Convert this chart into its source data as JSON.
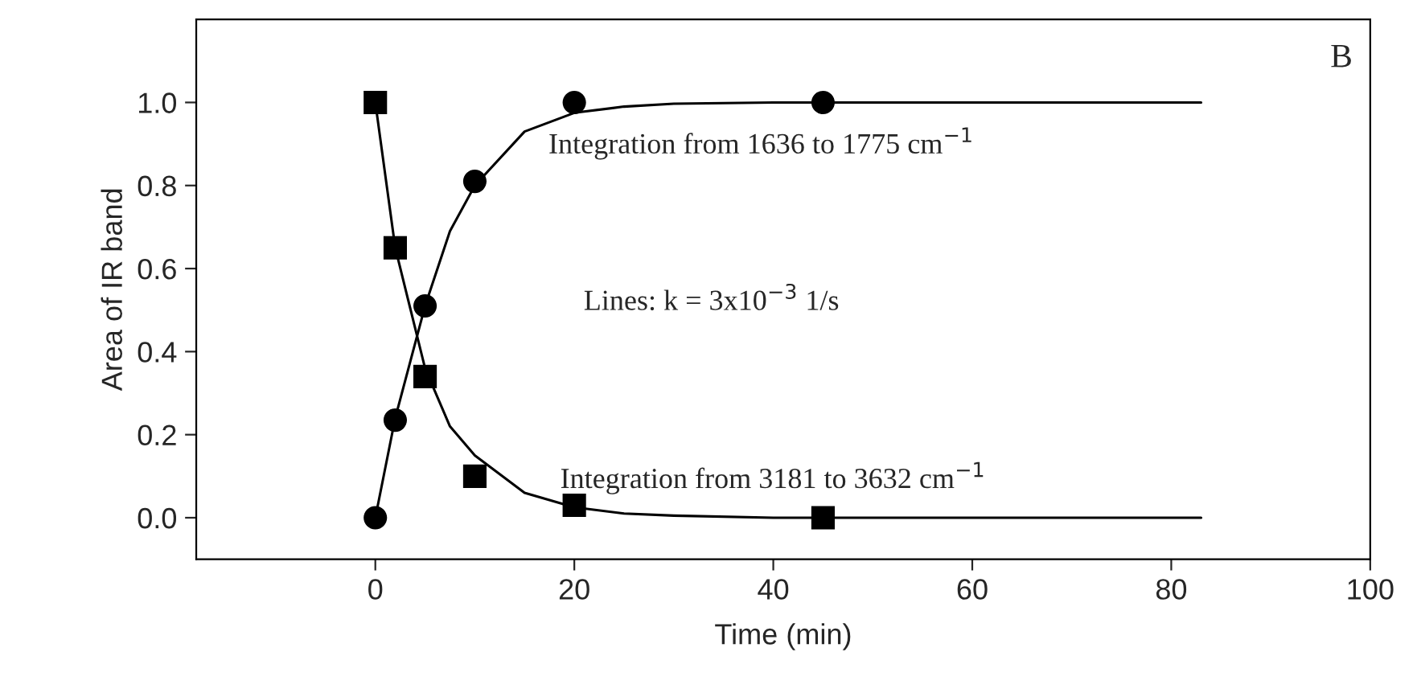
{
  "chart_data": {
    "type": "scatter",
    "xlabel": "Time (min)",
    "ylabel": "Area of IR band",
    "xlim": [
      -18,
      100
    ],
    "xticks": [
      0,
      20,
      40,
      60,
      80,
      100
    ],
    "ylim": [
      -0.1,
      1.2
    ],
    "yticks": [
      {
        "value": 0,
        "label": "0.0"
      },
      {
        "value": 0.2,
        "label": "0.2"
      },
      {
        "value": 0.4,
        "label": "0.4"
      },
      {
        "value": 0.6,
        "label": "0.6"
      },
      {
        "value": 0.8,
        "label": "0.8"
      },
      {
        "value": 1,
        "label": "1.0"
      }
    ],
    "grid": false,
    "legend": false,
    "annotations": [
      "B",
      "Integration from 1636 to 1775 cm$^{−1}$",
      "Lines: k = 3x10$^{−3}$ 1/s",
      "Integration from 3181 to 3632 cm$^{−1}$"
    ],
    "series": [
      {
        "marker": "circle",
        "color": "#000000",
        "x": [
          0,
          2,
          5,
          10,
          20,
          45
        ],
        "values": [
          0,
          0.235,
          0.51,
          0.81,
          1.0,
          1.0
        ]
      },
      {
        "marker": "square",
        "color": "#000000",
        "x": [
          0,
          2,
          5,
          10,
          20,
          45
        ],
        "values": [
          1.0,
          0.65,
          0.34,
          0.1,
          0.03,
          0.0
        ]
      },
      {
        "type": "line",
        "marker": "none",
        "line_style": "solid",
        "color": "#000000",
        "x": [
          0,
          2,
          5,
          7.5,
          10,
          15,
          20,
          25,
          30,
          40,
          83
        ],
        "values": [
          0,
          0.24,
          0.51,
          0.69,
          0.8,
          0.93,
          0.975,
          0.99,
          0.997,
          1.0,
          1.0
        ]
      },
      {
        "type": "line",
        "marker": "none",
        "line_style": "solid",
        "color": "#000000",
        "x": [
          0,
          2,
          5,
          7.5,
          10,
          15,
          20,
          25,
          30,
          40,
          83
        ],
        "values": [
          1.0,
          0.65,
          0.36,
          0.22,
          0.15,
          0.06,
          0.025,
          0.01,
          0.005,
          0.0,
          0.0
        ]
      }
    ]
  }
}
